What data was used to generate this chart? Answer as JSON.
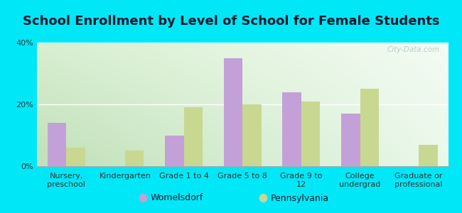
{
  "title": "School Enrollment by Level of School for Female Students",
  "categories": [
    "Nursery,\npreschool",
    "Kindergarten",
    "Grade 1 to 4",
    "Grade 5 to 8",
    "Grade 9 to\n12",
    "College\nundergrad",
    "Graduate or\nprofessional"
  ],
  "womelsdorf": [
    14,
    0,
    10,
    35,
    24,
    17,
    0
  ],
  "pennsylvania": [
    6,
    5,
    19,
    20,
    21,
    25,
    7
  ],
  "bar_color_womelsdorf": "#c4a0d8",
  "bar_color_pennsylvania": "#c8d890",
  "ylim": [
    0,
    40
  ],
  "yticks": [
    0,
    20,
    40
  ],
  "ytick_labels": [
    "0%",
    "20%",
    "40%"
  ],
  "background_color": "#00e8f8",
  "legend_labels": [
    "Womelsdorf",
    "Pennsylvania"
  ],
  "watermark": "City-Data.com",
  "title_fontsize": 13,
  "tick_fontsize": 8,
  "legend_fontsize": 9,
  "bar_width": 0.32,
  "plot_bg_topleft": "#daf0d8",
  "plot_bg_topright": "#f0f8f0",
  "plot_bg_botleft": "#c8e8c0",
  "plot_bg_botright": "#ffffff"
}
